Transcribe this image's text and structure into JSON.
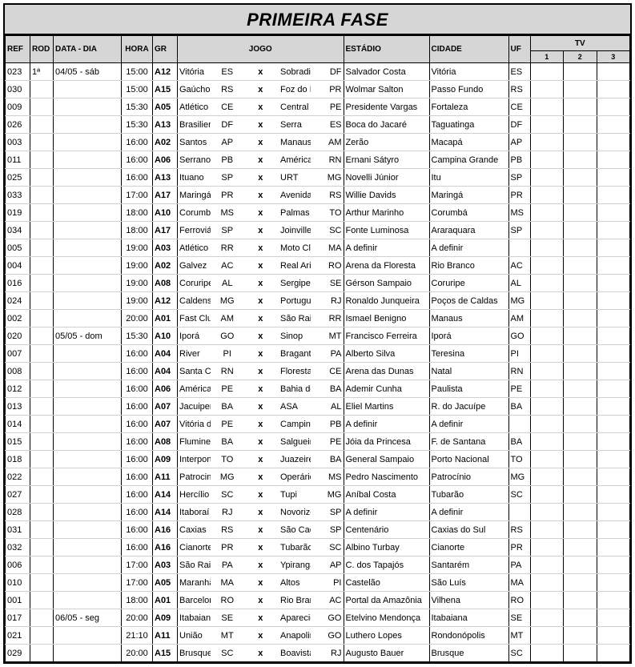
{
  "title": "PRIMEIRA FASE",
  "headers": {
    "ref": "REF",
    "rod": "ROD",
    "data": "DATA - DIA",
    "hora": "HORA",
    "gr": "GR",
    "jogo": "JOGO",
    "estadio": "ESTÁDIO",
    "cidade": "CIDADE",
    "uf": "UF",
    "tv": "TV",
    "tv1": "1",
    "tv2": "2",
    "tv3": "3"
  },
  "rows": [
    {
      "ref": "023",
      "rod": "1ª",
      "data": "04/05 -   sáb",
      "hora": "15:00",
      "gr": "A12",
      "home": "Vitória",
      "uf1": "ES",
      "away": "Sobradinho",
      "uf2": "DF",
      "est": "Salvador Costa",
      "cid": "Vitória",
      "uf": "ES"
    },
    {
      "ref": "030",
      "rod": "",
      "data": "",
      "hora": "15:00",
      "gr": "A15",
      "home": "Gaúcho",
      "uf1": "RS",
      "away": "Foz do Iguaçu",
      "uf2": "PR",
      "est": "Wolmar Salton",
      "cid": "Passo Fundo",
      "uf": "RS"
    },
    {
      "ref": "009",
      "rod": "",
      "data": "",
      "hora": "15:30",
      "gr": "A05",
      "home": "Atlético Cearense",
      "uf1": "CE",
      "away": "Central",
      "uf2": "PE",
      "est": "Presidente Vargas",
      "cid": "Fortaleza",
      "uf": "CE"
    },
    {
      "ref": "026",
      "rod": "",
      "data": "",
      "hora": "15:30",
      "gr": "A13",
      "home": "Brasiliense",
      "uf1": "DF",
      "away": "Serra",
      "uf2": "ES",
      "est": "Boca do Jacaré",
      "cid": "Taguatinga",
      "uf": "DF"
    },
    {
      "ref": "003",
      "rod": "",
      "data": "",
      "hora": "16:00",
      "gr": "A02",
      "home": "Santos",
      "uf1": "AP",
      "away": "Manaus",
      "uf2": "AM",
      "est": "Zerão",
      "cid": "Macapá",
      "uf": "AP"
    },
    {
      "ref": "011",
      "rod": "",
      "data": "",
      "hora": "16:00",
      "gr": "A06",
      "home": "Serrano",
      "uf1": "PB",
      "away": "América",
      "uf2": "RN",
      "est": "Ernani Sátyro",
      "cid": "Campina Grande",
      "uf": "PB"
    },
    {
      "ref": "025",
      "rod": "",
      "data": "",
      "hora": "16:00",
      "gr": "A13",
      "home": "Ituano",
      "uf1": "SP",
      "away": "URT",
      "uf2": "MG",
      "est": "Novelli Júnior",
      "cid": "Itu",
      "uf": "SP"
    },
    {
      "ref": "033",
      "rod": "",
      "data": "",
      "hora": "17:00",
      "gr": "A17",
      "home": "Maringá",
      "uf1": "PR",
      "away": "Avenida",
      "uf2": "RS",
      "est": "Willie Davids",
      "cid": "Maringá",
      "uf": "PR"
    },
    {
      "ref": "019",
      "rod": "",
      "data": "",
      "hora": "18:00",
      "gr": "A10",
      "home": "Corumbaense",
      "uf1": "MS",
      "away": "Palmas",
      "uf2": "TO",
      "est": "Arthur Marinho",
      "cid": "Corumbá",
      "uf": "MS"
    },
    {
      "ref": "034",
      "rod": "",
      "data": "",
      "hora": "18:00",
      "gr": "A17",
      "home": "Ferroviária",
      "uf1": "SP",
      "away": "Joinville",
      "uf2": "SC",
      "est": "Fonte Luminosa",
      "cid": "Araraquara",
      "uf": "SP"
    },
    {
      "ref": "005",
      "rod": "",
      "data": "",
      "hora": "19:00",
      "gr": "A03",
      "home": "Atlético Roraima",
      "uf1": "RR",
      "away": "Moto Club",
      "uf2": "MA",
      "est": "A definir",
      "cid": "A definir",
      "uf": ""
    },
    {
      "ref": "004",
      "rod": "",
      "data": "",
      "hora": "19:00",
      "gr": "A02",
      "home": "Galvez",
      "uf1": "AC",
      "away": "Real Ariquemes",
      "uf2": "RO",
      "est": "Arena da Floresta",
      "cid": "Rio Branco",
      "uf": "AC"
    },
    {
      "ref": "016",
      "rod": "",
      "data": "",
      "hora": "19:00",
      "gr": "A08",
      "home": "Coruripe",
      "uf1": "AL",
      "away": "Sergipe",
      "uf2": "SE",
      "est": "Gérson Sampaio",
      "cid": "Coruripe",
      "uf": "AL"
    },
    {
      "ref": "024",
      "rod": "",
      "data": "",
      "hora": "19:00",
      "gr": "A12",
      "home": "Caldense",
      "uf1": "MG",
      "away": "Portuguesa",
      "uf2": "RJ",
      "est": "Ronaldo Junqueira",
      "cid": "Poços de Caldas",
      "uf": "MG"
    },
    {
      "ref": "002",
      "rod": "",
      "data": "",
      "hora": "20:00",
      "gr": "A01",
      "home": "Fast Clube",
      "uf1": "AM",
      "away": "São Raimundo",
      "uf2": "RR",
      "est": "Ismael Benigno",
      "cid": "Manaus",
      "uf": "AM"
    },
    {
      "ref": "020",
      "rod": "",
      "data": "05/05 -   dom",
      "hora": "15:30",
      "gr": "A10",
      "home": "Iporá",
      "uf1": "GO",
      "away": "Sinop",
      "uf2": "MT",
      "est": "Francisco Ferreira",
      "cid": "Iporá",
      "uf": "GO"
    },
    {
      "ref": "007",
      "rod": "",
      "data": "",
      "hora": "16:00",
      "gr": "A04",
      "home": "River",
      "uf1": "PI",
      "away": "Bragantino",
      "uf2": "PA",
      "est": "Alberto Silva",
      "cid": "Teresina",
      "uf": "PI"
    },
    {
      "ref": "008",
      "rod": "",
      "data": "",
      "hora": "16:00",
      "gr": "A04",
      "home": "Santa Cruz",
      "uf1": "RN",
      "away": "Floresta",
      "uf2": "CE",
      "est": "Arena das Dunas",
      "cid": "Natal",
      "uf": "RN"
    },
    {
      "ref": "012",
      "rod": "",
      "data": "",
      "hora": "16:00",
      "gr": "A06",
      "home": "América",
      "uf1": "PE",
      "away": "Bahia de Feira",
      "uf2": "BA",
      "est": "Ademir Cunha",
      "cid": "Paulista",
      "uf": "PE"
    },
    {
      "ref": "013",
      "rod": "",
      "data": "",
      "hora": "16:00",
      "gr": "A07",
      "home": "Jacuipense",
      "uf1": "BA",
      "away": "ASA",
      "uf2": "AL",
      "est": "Eliel Martins",
      "cid": "R. do Jacuípe",
      "uf": "BA"
    },
    {
      "ref": "014",
      "rod": "",
      "data": "",
      "hora": "16:00",
      "gr": "A07",
      "home": "Vitória das Tabocas",
      "uf1": "PE",
      "away": "Campinense",
      "uf2": "PB",
      "est": "A definir",
      "cid": "A definir",
      "uf": ""
    },
    {
      "ref": "015",
      "rod": "",
      "data": "",
      "hora": "16:00",
      "gr": "A08",
      "home": "Fluminense de Feira",
      "uf1": "BA",
      "away": "Salgueiro",
      "uf2": "PE",
      "est": "Jóia da Princesa",
      "cid": "F. de Santana",
      "uf": "BA"
    },
    {
      "ref": "018",
      "rod": "",
      "data": "",
      "hora": "16:00",
      "gr": "A09",
      "home": "Interporto",
      "uf1": "TO",
      "away": "Juazeirense",
      "uf2": "BA",
      "est": "General Sampaio",
      "cid": "Porto Nacional",
      "uf": "TO"
    },
    {
      "ref": "022",
      "rod": "",
      "data": "",
      "hora": "16:00",
      "gr": "A11",
      "home": "Patrocinense",
      "uf1": "MG",
      "away": "Operário",
      "uf2": "MS",
      "est": "Pedro Nascimento",
      "cid": "Patrocínio",
      "uf": "MG"
    },
    {
      "ref": "027",
      "rod": "",
      "data": "",
      "hora": "16:00",
      "gr": "A14",
      "home": "Hercílio Luz",
      "uf1": "SC",
      "away": "Tupi",
      "uf2": "MG",
      "est": "Aníbal Costa",
      "cid": "Tubarão",
      "uf": "SC"
    },
    {
      "ref": "028",
      "rod": "",
      "data": "",
      "hora": "16:00",
      "gr": "A14",
      "home": "Itaboraí",
      "uf1": "RJ",
      "away": "Novorizontino",
      "uf2": "SP",
      "est": "A definir",
      "cid": "A definir",
      "uf": ""
    },
    {
      "ref": "031",
      "rod": "",
      "data": "",
      "hora": "16:00",
      "gr": "A16",
      "home": "Caxias",
      "uf1": "RS",
      "away": "São Caetano",
      "uf2": "SP",
      "est": "Centenário",
      "cid": "Caxias do Sul",
      "uf": "RS"
    },
    {
      "ref": "032",
      "rod": "",
      "data": "",
      "hora": "16:00",
      "gr": "A16",
      "home": "Cianorte",
      "uf1": "PR",
      "away": "Tubarão",
      "uf2": "SC",
      "est": "Albino Turbay",
      "cid": "Cianorte",
      "uf": "PR"
    },
    {
      "ref": "006",
      "rod": "",
      "data": "",
      "hora": "17:00",
      "gr": "A03",
      "home": "São Raimundo",
      "uf1": "PA",
      "away": "Ypiranga",
      "uf2": "AP",
      "est": "C. dos Tapajós",
      "cid": "Santarém",
      "uf": "PA"
    },
    {
      "ref": "010",
      "rod": "",
      "data": "",
      "hora": "17:00",
      "gr": "A05",
      "home": "Maranhão",
      "uf1": "MA",
      "away": "Altos",
      "uf2": "PI",
      "est": "Castelão",
      "cid": "São Luís",
      "uf": "MA"
    },
    {
      "ref": "001",
      "rod": "",
      "data": "",
      "hora": "18:00",
      "gr": "A01",
      "home": "Barcelona",
      "uf1": "RO",
      "away": "Rio Branco",
      "uf2": "AC",
      "est": "Portal da Amazônia",
      "cid": "Vilhena",
      "uf": "RO"
    },
    {
      "ref": "017",
      "rod": "",
      "data": "06/05 -   seg",
      "hora": "20:00",
      "gr": "A09",
      "home": "Itabaiana",
      "uf1": "SE",
      "away": "Aparecidense",
      "uf2": "GO",
      "est": "Etelvino Mendonça",
      "cid": "Itabaiana",
      "uf": "SE"
    },
    {
      "ref": "021",
      "rod": "",
      "data": "",
      "hora": "21:10",
      "gr": "A11",
      "home": "União",
      "uf1": "MT",
      "away": "Anapolina",
      "uf2": "GO",
      "est": "Luthero Lopes",
      "cid": "Rondonópolis",
      "uf": "MT"
    },
    {
      "ref": "029",
      "rod": "",
      "data": "",
      "hora": "20:00",
      "gr": "A15",
      "home": "Brusque",
      "uf1": "SC",
      "away": "Boavista",
      "uf2": "RJ",
      "est": "Augusto Bauer",
      "cid": "Brusque",
      "uf": "SC"
    }
  ]
}
